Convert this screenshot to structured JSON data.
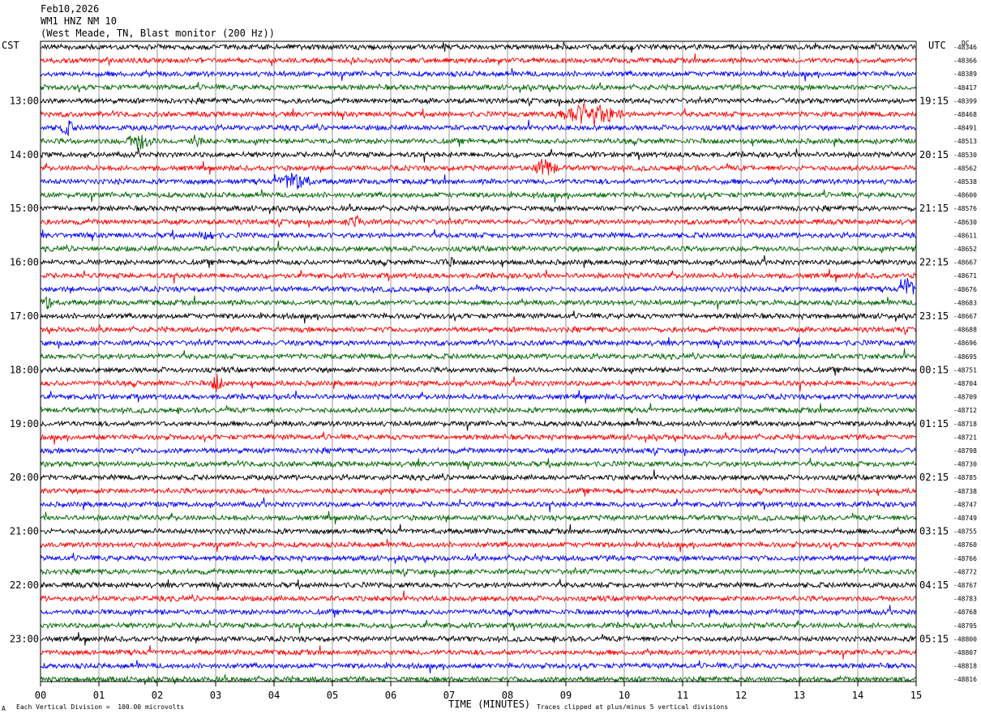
{
  "header": {
    "date": "Feb10,2026",
    "station": "WM1 HNZ NM 10",
    "location": "(West Meade, TN, Blast monitor (200 Hz))"
  },
  "left_tz": "CST",
  "right_tz": "UTC",
  "dc_label": "DC",
  "xlabel": "TIME (MINUTES)",
  "footer": {
    "scale_icon": "A",
    "scale_note": "Each Vertical Division =  100.00 microvolts",
    "clip_note": "Traces clipped at plus/minus 5 vertical divisions"
  },
  "colors": {
    "trace_cycle": [
      "#000000",
      "#ff0000",
      "#0000ff",
      "#006400"
    ],
    "grid": "#808080"
  },
  "chart_data": {
    "type": "line",
    "title": "WM1 HNZ NM 10",
    "xlabel": "TIME (MINUTES)",
    "xlim": [
      0,
      15
    ],
    "x_ticks": [
      "00",
      "01",
      "02",
      "03",
      "04",
      "05",
      "06",
      "07",
      "08",
      "09",
      "10",
      "11",
      "12",
      "13",
      "14",
      "15"
    ],
    "rows_per_hour": 4,
    "row_count": 48,
    "left_hour_labels": [
      "13:00",
      "14:00",
      "15:00",
      "16:00",
      "17:00",
      "18:00",
      "19:00",
      "20:00",
      "21:00",
      "22:00",
      "23:00"
    ],
    "right_hour_labels": [
      "19:15",
      "20:15",
      "21:15",
      "22:15",
      "23:15",
      "00:15",
      "01:15",
      "02:15",
      "03:15",
      "04:15",
      "05:15"
    ],
    "dc_offsets": [
      "48346",
      "48366",
      "48389",
      "48417",
      "48399",
      "48468",
      "48491",
      "48513",
      "48530",
      "48562",
      "48538",
      "48600",
      "48576",
      "48630",
      "48611",
      "48652",
      "48667",
      "48671",
      "48676",
      "48683",
      "48667",
      "48688",
      "48696",
      "48695",
      "48751",
      "48704",
      "48709",
      "48712",
      "48718",
      "48721",
      "48798",
      "48730",
      "48785",
      "48738",
      "48747",
      "48749",
      "48755",
      "48760",
      "48766",
      "48772",
      "48767",
      "48783",
      "48768",
      "48795",
      "48800",
      "48807",
      "48818",
      "48816"
    ],
    "events": [
      {
        "row": 5,
        "start_min": 8.7,
        "end_min": 10.1,
        "amplitude": 3.0
      },
      {
        "row": 6,
        "start_min": 0.3,
        "end_min": 0.6,
        "amplitude": 2.0
      },
      {
        "row": 7,
        "start_min": 1.4,
        "end_min": 2.0,
        "amplitude": 2.0
      },
      {
        "row": 7,
        "start_min": 2.5,
        "end_min": 2.8,
        "amplitude": 1.5
      },
      {
        "row": 9,
        "start_min": 8.4,
        "end_min": 8.9,
        "amplitude": 2.5
      },
      {
        "row": 10,
        "start_min": 4.0,
        "end_min": 4.7,
        "amplitude": 2.5
      },
      {
        "row": 13,
        "start_min": 5.2,
        "end_min": 5.6,
        "amplitude": 1.5
      },
      {
        "row": 14,
        "start_min": 2.7,
        "end_min": 3.0,
        "amplitude": 1.8
      },
      {
        "row": 16,
        "start_min": 6.85,
        "end_min": 7.1,
        "amplitude": 1.5
      },
      {
        "row": 18,
        "start_min": 14.7,
        "end_min": 15.0,
        "amplitude": 3.5
      },
      {
        "row": 19,
        "start_min": 0.0,
        "end_min": 0.25,
        "amplitude": 2.0
      },
      {
        "row": 25,
        "start_min": 2.9,
        "end_min": 3.15,
        "amplitude": 2.5
      }
    ]
  }
}
